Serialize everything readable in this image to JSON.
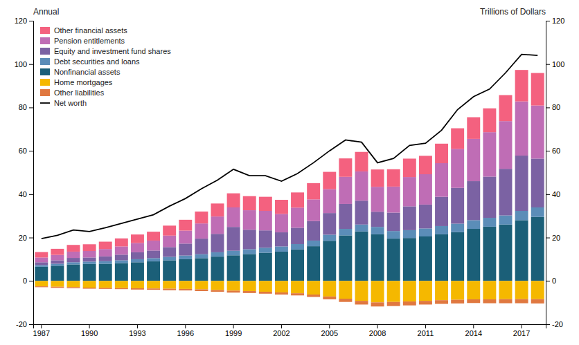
{
  "chart_data": {
    "type": "bar",
    "stacked": true,
    "grid": false,
    "legend": "upper left",
    "annotations": [
      "Annual",
      "Trillions of Dollars"
    ],
    "categories": [
      "1987",
      null,
      null,
      "1990",
      null,
      null,
      "1993",
      null,
      null,
      "1996",
      null,
      null,
      "1999",
      null,
      null,
      "2002",
      null,
      null,
      "2005",
      null,
      null,
      "2008",
      null,
      null,
      "2011",
      null,
      null,
      "2014",
      null,
      null,
      "2017",
      null
    ],
    "series": [
      {
        "name": "Other financial assets",
        "color": "#F4617F",
        "values": [
          2.5,
          2.8,
          3.1,
          3.1,
          3.4,
          3.7,
          3.9,
          4.1,
          4.6,
          5.0,
          5.5,
          6.0,
          6.5,
          6.5,
          6.5,
          6.5,
          7.0,
          7.5,
          8.0,
          8.5,
          9.0,
          8.0,
          8.0,
          8.5,
          8.5,
          9.0,
          9.5,
          10.0,
          11.0,
          12.0,
          14.5,
          15.0
        ]
      },
      {
        "name": "Pension entitlements",
        "color": "#BF6DB5",
        "values": [
          2.2,
          2.5,
          2.9,
          3.0,
          3.4,
          3.8,
          4.3,
          4.6,
          5.3,
          6.0,
          7.0,
          8.0,
          9.0,
          9.0,
          9.0,
          8.5,
          9.3,
          10.0,
          11.0,
          12.5,
          13.5,
          11.5,
          12.0,
          13.5,
          14.0,
          15.5,
          18.0,
          19.5,
          20.5,
          22.0,
          25.0,
          24.5
        ]
      },
      {
        "name": "Equity and investment fund shares",
        "color": "#7B62A3",
        "values": [
          1.3,
          1.6,
          2.0,
          1.9,
          2.2,
          2.6,
          3.2,
          3.5,
          4.5,
          5.5,
          7.2,
          8.5,
          11.0,
          9.0,
          8.0,
          6.5,
          7.5,
          9.0,
          10.0,
          11.5,
          11.0,
          7.0,
          8.5,
          11.0,
          11.0,
          13.5,
          16.5,
          18.0,
          19.0,
          21.5,
          25.5,
          22.5
        ]
      },
      {
        "name": "Debt securities and loans",
        "color": "#5B8DB8",
        "values": [
          0.8,
          0.9,
          1.0,
          1.1,
          1.2,
          1.3,
          1.4,
          1.5,
          1.6,
          1.7,
          1.8,
          2.0,
          2.1,
          2.2,
          2.3,
          2.4,
          2.5,
          2.6,
          2.8,
          3.0,
          3.2,
          3.4,
          3.5,
          3.6,
          3.7,
          3.8,
          3.9,
          4.0,
          4.1,
          4.2,
          4.3,
          4.4
        ]
      },
      {
        "name": "Nonfinancial assets",
        "color": "#1B5F78",
        "values": [
          6.5,
          7.0,
          7.6,
          7.8,
          7.9,
          8.2,
          8.6,
          9.0,
          9.5,
          10.0,
          10.5,
          11.2,
          11.8,
          12.4,
          13.0,
          13.5,
          14.5,
          16.0,
          18.5,
          21.0,
          22.8,
          21.5,
          19.5,
          19.8,
          20.5,
          21.5,
          22.5,
          24.0,
          25.0,
          26.0,
          28.0,
          29.5
        ]
      },
      {
        "name": "Home mortgages",
        "color": "#F5B800",
        "values": [
          -2.5,
          -2.7,
          -2.9,
          -3.1,
          -3.2,
          -3.3,
          -3.4,
          -3.5,
          -3.6,
          -3.7,
          -3.9,
          -4.2,
          -4.5,
          -4.7,
          -5.0,
          -5.3,
          -5.7,
          -6.3,
          -7.2,
          -8.2,
          -9.2,
          -9.9,
          -9.7,
          -9.5,
          -9.2,
          -8.9,
          -8.7,
          -8.5,
          -8.5,
          -8.4,
          -8.4,
          -8.4
        ]
      },
      {
        "name": "Other liabilities",
        "color": "#E07840",
        "values": [
          -0.4,
          -0.5,
          -0.5,
          -0.5,
          -0.5,
          -0.5,
          -0.6,
          -0.6,
          -0.7,
          -0.7,
          -0.8,
          -0.8,
          -0.9,
          -0.9,
          -0.9,
          -1.0,
          -1.0,
          -1.1,
          -1.3,
          -1.5,
          -1.7,
          -1.9,
          -1.9,
          -1.8,
          -1.7,
          -1.7,
          -1.7,
          -1.7,
          -1.8,
          -1.9,
          -1.9,
          -2.0
        ]
      },
      {
        "name": "Net worth",
        "type": "line",
        "color": "black",
        "values": [
          19.5,
          21.0,
          23.5,
          22.8,
          24.5,
          26.5,
          28.5,
          30.5,
          34.5,
          38.0,
          42.5,
          46.5,
          51.5,
          48.5,
          48.5,
          46.0,
          49.5,
          54.5,
          60.0,
          65.0,
          64.0,
          54.5,
          56.5,
          62.5,
          63.5,
          69.5,
          79.0,
          85.0,
          88.5,
          96.0,
          104.5,
          104.0
        ]
      }
    ],
    "ylim": [
      -20,
      120
    ],
    "yticks": [
      -20,
      0,
      20,
      40,
      60,
      80,
      100,
      120
    ],
    "y2lim": [
      -20,
      120
    ],
    "y2ticks": [
      -20,
      0,
      20,
      40,
      60,
      80,
      100,
      120
    ]
  }
}
